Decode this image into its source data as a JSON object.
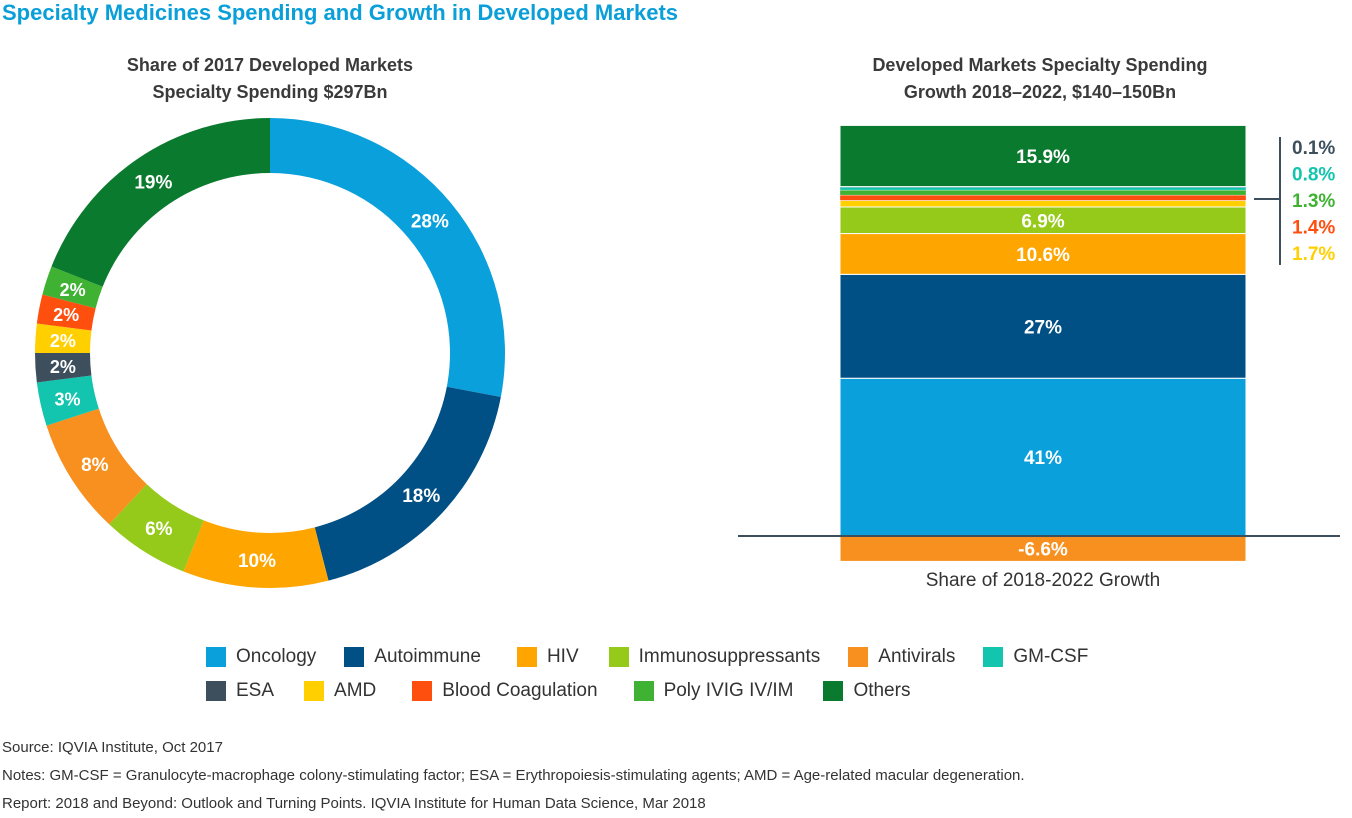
{
  "title": "Specialty Medicines Spending and Growth in Developed Markets",
  "chart_data": [
    {
      "type": "pie",
      "title_lines": [
        "Share of 2017 Developed Markets",
        "Specialty Spending $297Bn"
      ],
      "donut": true,
      "slices": [
        {
          "name": "Oncology",
          "value": 28,
          "label": "28%",
          "color": "#0aa0dc"
        },
        {
          "name": "Autoimmune",
          "value": 18,
          "label": "18%",
          "color": "#004f85"
        },
        {
          "name": "HIV",
          "value": 10,
          "label": "10%",
          "color": "#ffa500"
        },
        {
          "name": "Immunosuppressants",
          "value": 6,
          "label": "6%",
          "color": "#95c91a"
        },
        {
          "name": "Antivirals",
          "value": 8,
          "label": "8%",
          "color": "#f7901e"
        },
        {
          "name": "GM-CSF",
          "value": 3,
          "label": "3%",
          "color": "#13c4ae"
        },
        {
          "name": "ESA",
          "value": 2,
          "label": "2%",
          "color": "#3d4f5c"
        },
        {
          "name": "AMD",
          "value": 2,
          "label": "2%",
          "color": "#ffcf00"
        },
        {
          "name": "Blood Coagulation",
          "value": 2,
          "label": "2%",
          "color": "#ff4f0f"
        },
        {
          "name": "Poly IVIG IV/IM",
          "value": 2,
          "label": "2%",
          "color": "#3fb233"
        },
        {
          "name": "Others",
          "value": 19,
          "label": "19%",
          "color": "#0a7a2e"
        }
      ]
    },
    {
      "type": "bar",
      "stacked": true,
      "title_lines": [
        "Developed Markets Specialty Spending",
        "Growth 2018–2022, $140–150Bn"
      ],
      "xlabel": "Share of 2018-2022 Growth",
      "segments": [
        {
          "name": "Antivirals",
          "value": -6.6,
          "label": "-6.6%",
          "color": "#f7901e"
        },
        {
          "name": "Oncology",
          "value": 41,
          "label": "41%",
          "color": "#0aa0dc"
        },
        {
          "name": "Autoimmune",
          "value": 27,
          "label": "27%",
          "color": "#004f85"
        },
        {
          "name": "HIV",
          "value": 10.6,
          "label": "10.6%",
          "color": "#ffa500"
        },
        {
          "name": "Immunosuppressants",
          "value": 6.9,
          "label": "6.9%",
          "color": "#95c91a"
        },
        {
          "name": "AMD",
          "value": 1.7,
          "label": "1.7%",
          "color": "#ffcf00",
          "callout": true
        },
        {
          "name": "Blood Coagulation",
          "value": 1.4,
          "label": "1.4%",
          "color": "#ff4f0f",
          "callout": true
        },
        {
          "name": "Poly IVIG IV/IM",
          "value": 1.3,
          "label": "1.3%",
          "color": "#3fb233",
          "callout": true
        },
        {
          "name": "GM-CSF",
          "value": 0.8,
          "label": "0.8%",
          "color": "#13c4ae",
          "callout": true
        },
        {
          "name": "ESA",
          "value": 0.1,
          "label": "0.1%",
          "color": "#3d4f5c",
          "callout": true
        },
        {
          "name": "Others",
          "value": 15.9,
          "label": "15.9%",
          "color": "#0a7a2e"
        }
      ]
    }
  ],
  "legend": [
    [
      {
        "label": "Oncology",
        "color": "#0aa0dc"
      },
      {
        "label": "Autoimmune",
        "color": "#004f85"
      },
      {
        "label": "HIV",
        "color": "#ffa500"
      },
      {
        "label": "Immunosuppressants",
        "color": "#95c91a"
      },
      {
        "label": "Antivirals",
        "color": "#f7901e"
      },
      {
        "label": "GM-CSF",
        "color": "#13c4ae"
      }
    ],
    [
      {
        "label": "ESA",
        "color": "#3d4f5c"
      },
      {
        "label": "AMD",
        "color": "#ffcf00"
      },
      {
        "label": "Blood Coagulation",
        "color": "#ff4f0f"
      },
      {
        "label": "Poly IVIG IV/IM",
        "color": "#3fb233"
      },
      {
        "label": "Others",
        "color": "#0a7a2e"
      }
    ]
  ],
  "footer": {
    "source": "Source: IQVIA Institute, Oct 2017",
    "notes": "Notes: GM-CSF = Granulocyte-macrophage colony-stimulating factor; ESA = Erythropoiesis-stimulating agents; AMD = Age-related macular degeneration.",
    "report": "Report: 2018 and Beyond: Outlook and Turning Points. IQVIA Institute for Human Data Science, Mar 2018"
  }
}
